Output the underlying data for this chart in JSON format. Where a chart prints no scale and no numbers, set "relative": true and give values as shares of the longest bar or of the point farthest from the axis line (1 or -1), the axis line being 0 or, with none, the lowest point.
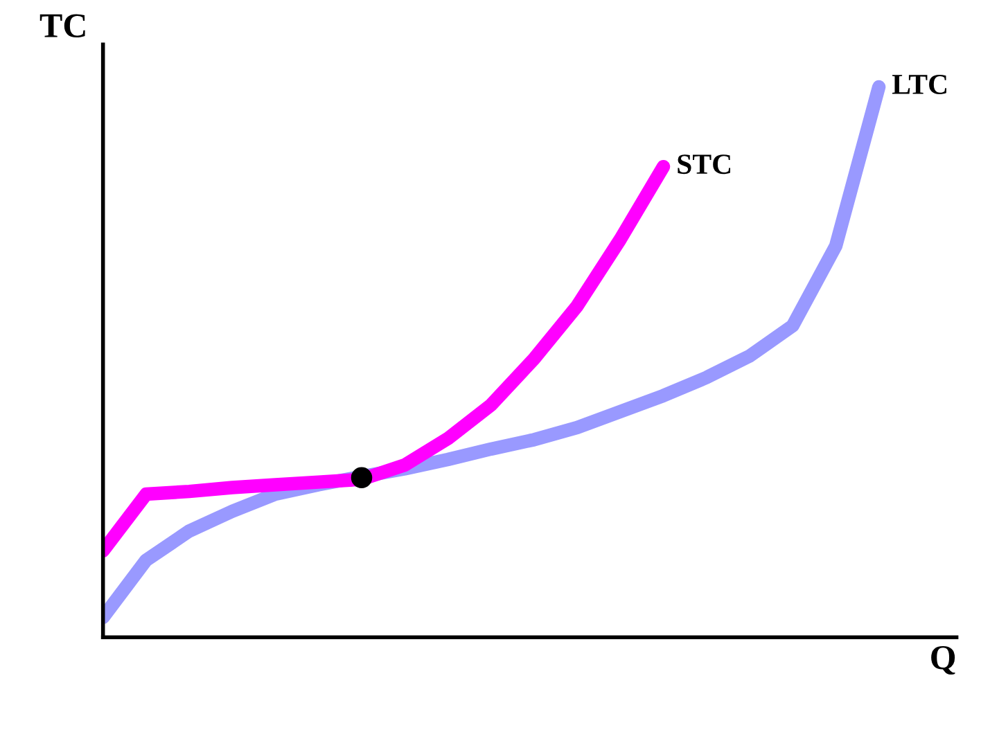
{
  "chart_data": {
    "type": "line",
    "relative": true,
    "xlabel": "Q",
    "ylabel": "TC",
    "tick_labels": false,
    "legend": false,
    "marker": "none",
    "line_style": "solid",
    "categories": [
      null,
      null,
      null,
      null,
      null,
      null,
      null,
      null,
      null,
      null,
      null,
      null,
      null,
      null,
      null,
      null,
      null,
      null,
      null
    ],
    "series": [
      {
        "name": "LTC",
        "color": "#9999ff",
        "values": [
          0.036,
          0.14,
          0.193,
          0.229,
          0.26,
          0.277,
          0.292,
          0.306,
          0.323,
          0.342,
          0.359,
          0.381,
          0.41,
          0.439,
          0.472,
          0.511,
          0.566,
          0.711,
          1
        ]
      },
      {
        "name": "STC",
        "color": "#ff00ff",
        "values": [
          0.157,
          0.26,
          0.265,
          0.272,
          0.277,
          0.282,
          0.287,
          0.313,
          0.361,
          0.422,
          0.506,
          0.602,
          0.723,
          0.855,
          null,
          null,
          null,
          null,
          null
        ]
      },
      {
        "color": "#000000",
        "marker": "circle",
        "values": [
          null,
          null,
          null,
          null,
          null,
          null,
          0.29,
          null,
          null,
          null,
          null,
          null,
          null,
          null,
          null,
          null,
          null,
          null,
          null
        ]
      }
    ]
  }
}
